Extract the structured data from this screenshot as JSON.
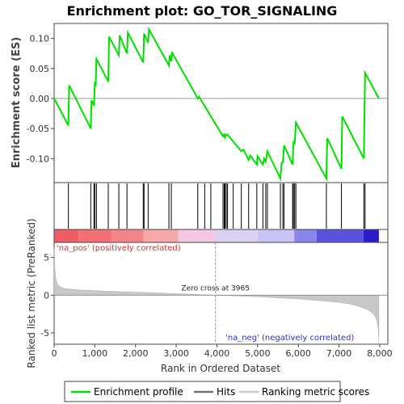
{
  "chart_data": {
    "type": "line",
    "title": "Enrichment plot: GO_TOR_SIGNALING",
    "top_panel": {
      "ylabel": "Enrichment score (ES)",
      "ylim": [
        -0.14,
        0.125
      ],
      "yticks": [
        -0.1,
        -0.05,
        0.0,
        0.05,
        0.1
      ],
      "ytick_labels": [
        "-0.10",
        "-0.05",
        "0.00",
        "0.05",
        "0.10"
      ],
      "enrichment_profile": [
        [
          0,
          0.0
        ],
        [
          350,
          -0.045
        ],
        [
          370,
          0.022
        ],
        [
          900,
          -0.05
        ],
        [
          920,
          -0.003
        ],
        [
          980,
          -0.012
        ],
        [
          1000,
          0.028
        ],
        [
          1020,
          0.02
        ],
        [
          1040,
          0.066
        ],
        [
          1330,
          0.028
        ],
        [
          1350,
          0.103
        ],
        [
          1590,
          0.072
        ],
        [
          1610,
          0.105
        ],
        [
          1790,
          0.075
        ],
        [
          1810,
          0.11
        ],
        [
          2190,
          0.06
        ],
        [
          2210,
          0.108
        ],
        [
          2310,
          0.093
        ],
        [
          2330,
          0.115
        ],
        [
          2820,
          0.055
        ],
        [
          2840,
          0.072
        ],
        [
          2880,
          0.062
        ],
        [
          2900,
          0.076
        ],
        [
          3530,
          0.0
        ],
        [
          3560,
          0.003
        ],
        [
          4150,
          -0.063
        ],
        [
          4180,
          -0.06
        ],
        [
          4200,
          -0.065
        ],
        [
          4230,
          -0.06
        ],
        [
          4260,
          -0.06
        ],
        [
          4600,
          -0.088
        ],
        [
          4650,
          -0.085
        ],
        [
          4780,
          -0.102
        ],
        [
          4820,
          -0.095
        ],
        [
          4980,
          -0.11
        ],
        [
          5000,
          -0.096
        ],
        [
          5130,
          -0.11
        ],
        [
          5160,
          -0.1
        ],
        [
          5200,
          -0.105
        ],
        [
          5240,
          -0.088
        ],
        [
          5560,
          -0.133
        ],
        [
          5590,
          -0.107
        ],
        [
          5620,
          -0.106
        ],
        [
          5650,
          -0.078
        ],
        [
          5860,
          -0.11
        ],
        [
          5880,
          -0.073
        ],
        [
          5910,
          -0.075
        ],
        [
          5940,
          -0.04
        ],
        [
          6690,
          -0.133
        ],
        [
          6710,
          -0.066
        ],
        [
          7060,
          -0.117
        ],
        [
          7080,
          -0.03
        ],
        [
          7610,
          -0.1
        ],
        [
          7640,
          0.043
        ],
        [
          7980,
          0.0
        ]
      ]
    },
    "hits": [
      350,
      900,
      980,
      1000,
      1040,
      1330,
      1590,
      1790,
      2190,
      2210,
      2310,
      2820,
      2880,
      3530,
      3700,
      3850,
      4150,
      4180,
      4200,
      4230,
      4260,
      4400,
      4600,
      4780,
      4980,
      5130,
      5200,
      5240,
      5560,
      5620,
      5650,
      5860,
      5880,
      5910,
      5940,
      6690,
      7060,
      7610,
      7640
    ],
    "ranking_bar": {
      "segments": [
        {
          "from": 0,
          "to": 600,
          "color": "#f05c64"
        },
        {
          "from": 600,
          "to": 1400,
          "color": "#f26f74"
        },
        {
          "from": 1400,
          "to": 2200,
          "color": "#f4868a"
        },
        {
          "from": 2200,
          "to": 3050,
          "color": "#f8a8a8"
        },
        {
          "from": 3050,
          "to": 3965,
          "color": "#f4c8e4"
        },
        {
          "from": 3965,
          "to": 5000,
          "color": "#dcd0f4"
        },
        {
          "from": 5000,
          "to": 5900,
          "color": "#c8c4f8"
        },
        {
          "from": 5900,
          "to": 6450,
          "color": "#8a84ee"
        },
        {
          "from": 6450,
          "to": 7600,
          "color": "#5c52e0"
        },
        {
          "from": 7600,
          "to": 7980,
          "color": "#2a1cc8"
        }
      ]
    },
    "bottom_panel": {
      "ylabel": "Ranked list metric (PreRanked)",
      "xlabel": "Rank in Ordered Dataset",
      "ylim": [
        -6.5,
        7.0
      ],
      "yticks": [
        -5,
        0,
        5
      ],
      "ytick_labels": [
        "-5",
        "0",
        "5"
      ],
      "xlim": [
        0,
        8200
      ],
      "xticks": [
        0,
        1000,
        2000,
        3000,
        4000,
        5000,
        6000,
        7000,
        8000
      ],
      "xtick_labels": [
        "0",
        "1,000",
        "2,000",
        "3,000",
        "4,000",
        "5,000",
        "6,000",
        "7,000",
        "8,000"
      ],
      "metric_curve": [
        [
          0,
          6.2
        ],
        [
          15,
          3.6
        ],
        [
          40,
          2.2
        ],
        [
          80,
          1.5
        ],
        [
          150,
          1.1
        ],
        [
          300,
          0.85
        ],
        [
          600,
          0.7
        ],
        [
          1000,
          0.6
        ],
        [
          1500,
          0.5
        ],
        [
          2000,
          0.4
        ],
        [
          2500,
          0.3
        ],
        [
          3000,
          0.2
        ],
        [
          3500,
          0.1
        ],
        [
          3965,
          0.0
        ],
        [
          4500,
          -0.1
        ],
        [
          5000,
          -0.2
        ],
        [
          5500,
          -0.35
        ],
        [
          6000,
          -0.5
        ],
        [
          6500,
          -0.7
        ],
        [
          7000,
          -0.95
        ],
        [
          7300,
          -1.2
        ],
        [
          7500,
          -1.5
        ],
        [
          7700,
          -1.9
        ],
        [
          7850,
          -2.5
        ],
        [
          7930,
          -3.3
        ],
        [
          7965,
          -4.5
        ],
        [
          7980,
          -6.2
        ]
      ],
      "pos_label": "'na_pos' (positively correlated)",
      "neg_label": "'na_neg' (negatively correlated)",
      "zero_cross_label": "Zero cross at 3965",
      "zero_cross": 3965
    },
    "legend": {
      "placement": "bottom",
      "entries": [
        {
          "label": "Enrichment profile",
          "color": "#00e000"
        },
        {
          "label": "Hits",
          "color": "#707070"
        },
        {
          "label": "Ranking metric scores",
          "color": "#c8c8c8"
        }
      ]
    },
    "colors": {
      "profile": "#00e000",
      "hits": "#000000",
      "metric": "#bbbbbb",
      "zero_line": "#888888"
    }
  }
}
